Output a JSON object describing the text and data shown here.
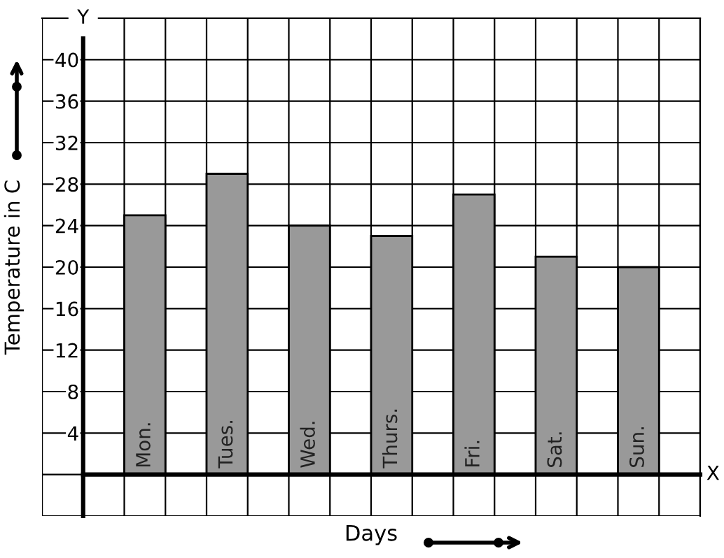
{
  "chart_data": {
    "type": "bar",
    "xlabel": "Days",
    "ylabel": "Temperature in C",
    "categories": [
      "Mon.",
      "Tues.",
      "Wed.",
      "Thurs.",
      "Fri.",
      "Sat.",
      "Sun."
    ],
    "values": [
      25,
      29,
      24,
      23,
      27,
      21,
      20
    ],
    "color": "#999999",
    "ylim": [
      -4,
      44
    ],
    "yticks": [
      4,
      8,
      12,
      16,
      20,
      24,
      28,
      32,
      36,
      40
    ],
    "grid": true,
    "annotations": [
      "Y",
      "X"
    ]
  }
}
